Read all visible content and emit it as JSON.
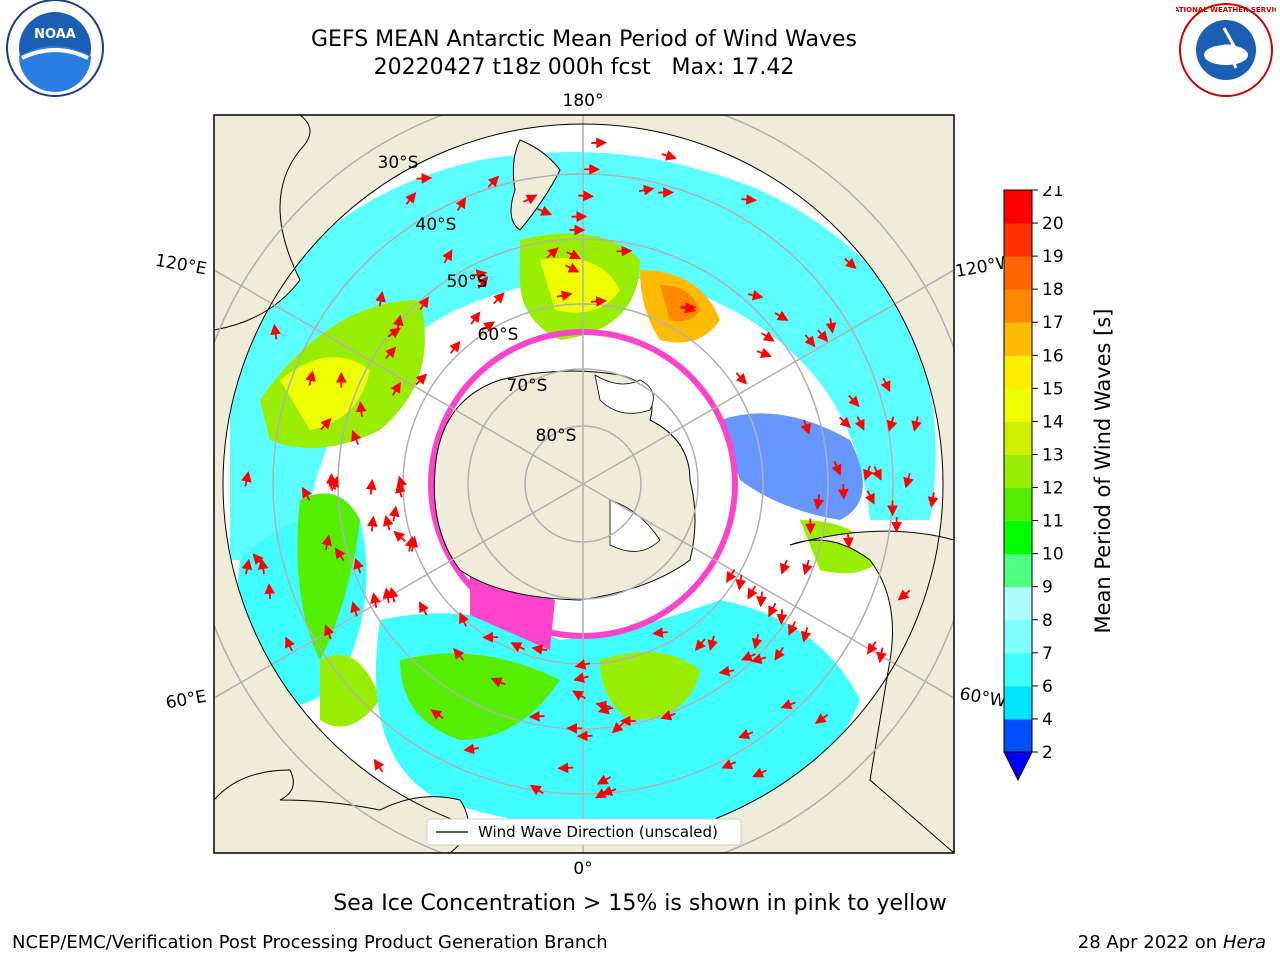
{
  "title": {
    "line1": "GEFS MEAN Antarctic Mean Period of Wind Waves",
    "line2": "20220427 t18z 000h fcst   Max: 17.42"
  },
  "map": {
    "projection": "south-polar-stereographic",
    "longitude_labels": {
      "top": "180°",
      "bottom": "0°",
      "upper_left": "120°E",
      "upper_right": "120°W",
      "lower_left": "60°E",
      "lower_right": "60°W"
    },
    "latitude_labels": [
      "30°S",
      "40°S",
      "50°S",
      "60°S",
      "70°S",
      "80°S"
    ],
    "legend_label": "Wind Wave Direction (unscaled)",
    "colors": {
      "land": "#efedd9",
      "ocean_no_data": "#ffffff",
      "sea_ice": "#ff44cc",
      "arrow": "#ff0000",
      "grid": "#b0b0b0"
    }
  },
  "colorbar": {
    "label": "Mean Period of Wind Waves [s]",
    "ticks": [
      "2",
      "4",
      "6",
      "7",
      "8",
      "9",
      "10",
      "11",
      "12",
      "13",
      "14",
      "15",
      "16",
      "17",
      "18",
      "19",
      "20",
      "21"
    ],
    "colors": [
      "#0050ff",
      "#00e5ff",
      "#40ffff",
      "#80ffff",
      "#b0ffff",
      "#50ff80",
      "#00ff00",
      "#55ee00",
      "#99ee00",
      "#ccf000",
      "#eeff00",
      "#ffee00",
      "#ffbb00",
      "#ff8800",
      "#ff6600",
      "#ff3300",
      "#ff0000"
    ],
    "under_color": "#0000ff"
  },
  "caption": "Sea Ice Concentration > 15% is shown in pink to yellow",
  "footer": {
    "left": "NCEP/EMC/Verification Post Processing Product Generation Branch",
    "right_date": "28 Apr 2022 on ",
    "right_host": "Hera"
  },
  "logos": {
    "left_text": "NOAA",
    "right_text": "NATIONAL WEATHER SERVICE"
  }
}
